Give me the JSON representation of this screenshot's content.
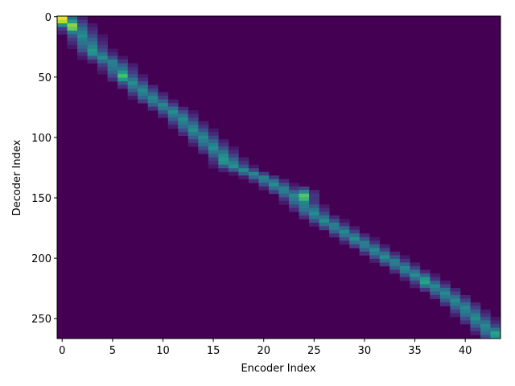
{
  "chart_data": {
    "type": "heatmap",
    "title": "",
    "xlabel": "Encoder Index",
    "ylabel": "Decoder Index",
    "xlim": [
      -0.5,
      43.5
    ],
    "ylim": [
      266.5,
      -0.5
    ],
    "x_ticks": [
      0,
      5,
      10,
      15,
      20,
      25,
      30,
      35,
      40
    ],
    "y_ticks": [
      0,
      50,
      100,
      150,
      200,
      250
    ],
    "encoder_length": 44,
    "decoder_length": 267,
    "colormap": "viridis",
    "grid": false,
    "colors": {
      "background": "#440154",
      "peak": "#fde725"
    },
    "alignment_path": [
      {
        "decoder": 0,
        "encoder": 0
      },
      {
        "decoder": 8,
        "encoder": 1
      },
      {
        "decoder": 18,
        "encoder": 2
      },
      {
        "decoder": 30,
        "encoder": 3
      },
      {
        "decoder": 40,
        "encoder": 5
      },
      {
        "decoder": 50,
        "encoder": 6
      },
      {
        "decoder": 60,
        "encoder": 7.5
      },
      {
        "decoder": 70,
        "encoder": 9
      },
      {
        "decoder": 80,
        "encoder": 11
      },
      {
        "decoder": 95,
        "encoder": 13
      },
      {
        "decoder": 110,
        "encoder": 15
      },
      {
        "decoder": 125,
        "encoder": 17
      },
      {
        "decoder": 135,
        "encoder": 20
      },
      {
        "decoder": 150,
        "encoder": 23
      },
      {
        "decoder": 165,
        "encoder": 25
      },
      {
        "decoder": 180,
        "encoder": 28
      },
      {
        "decoder": 195,
        "encoder": 31
      },
      {
        "decoder": 210,
        "encoder": 34
      },
      {
        "decoder": 225,
        "encoder": 37
      },
      {
        "decoder": 240,
        "encoder": 39.5
      },
      {
        "decoder": 255,
        "encoder": 41.5
      },
      {
        "decoder": 266,
        "encoder": 43
      }
    ],
    "hotspots": [
      {
        "decoder": 1,
        "encoder": 0,
        "weight": 1.0
      },
      {
        "decoder": 7,
        "encoder": 1,
        "weight": 0.85
      },
      {
        "decoder": 28,
        "encoder": 3,
        "weight": 0.55
      },
      {
        "decoder": 48,
        "encoder": 6,
        "weight": 0.7
      },
      {
        "decoder": 118,
        "encoder": 16,
        "weight": 0.55
      },
      {
        "decoder": 148,
        "encoder": 24,
        "weight": 0.75
      },
      {
        "decoder": 218,
        "encoder": 36,
        "weight": 0.6
      },
      {
        "decoder": 262,
        "encoder": 43,
        "weight": 0.6
      }
    ]
  }
}
